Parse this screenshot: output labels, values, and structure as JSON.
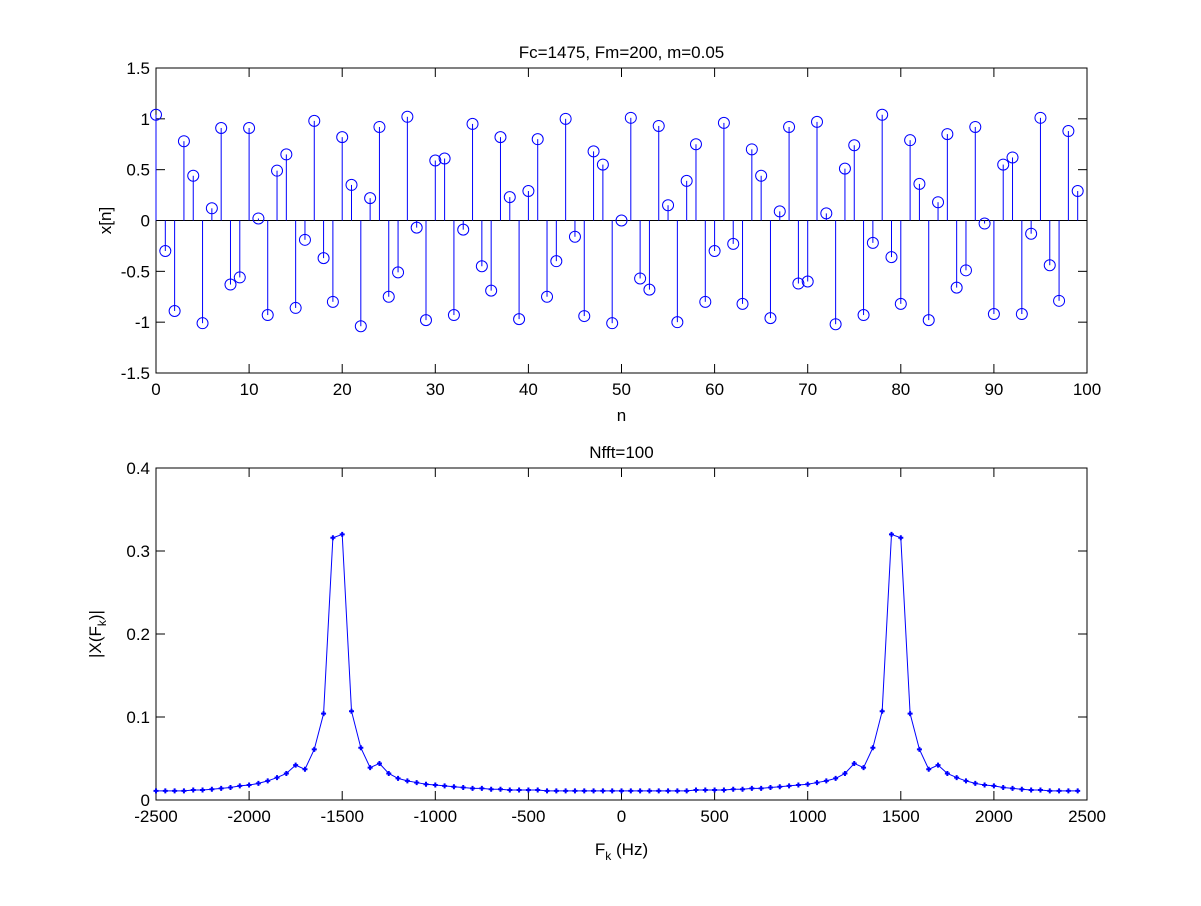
{
  "chart_data": [
    {
      "type": "stem",
      "title": "Fc=1475, Fm=200, m=0.05",
      "xlabel": "n",
      "ylabel": "x[n]",
      "xlim": [
        0,
        100
      ],
      "ylim": [
        -1.5,
        1.5
      ],
      "xticks": [
        "0",
        "10",
        "20",
        "30",
        "40",
        "50",
        "60",
        "70",
        "80",
        "90",
        "100"
      ],
      "yticks": [
        "-1.5",
        "-1",
        "-0.5",
        "0",
        "0.5",
        "1",
        "1.5"
      ],
      "color": "#0000ff",
      "x_start": 0,
      "values": [
        1.04,
        -0.3,
        -0.89,
        0.78,
        0.44,
        -1.01,
        0.12,
        0.91,
        -0.63,
        -0.56,
        0.91,
        0.02,
        -0.93,
        0.49,
        0.65,
        -0.86,
        -0.19,
        0.98,
        -0.37,
        -0.8,
        0.82,
        0.35,
        -1.04,
        0.22,
        0.92,
        -0.75,
        -0.51,
        1.02,
        -0.07,
        -0.98,
        0.59,
        0.61,
        -0.93,
        -0.09,
        0.95,
        -0.45,
        -0.69,
        0.82,
        0.23,
        -0.97,
        0.29,
        0.8,
        -0.75,
        -0.4,
        1.0,
        -0.16,
        -0.94,
        0.68,
        0.55,
        -1.01,
        0.0,
        1.01,
        -0.57,
        -0.68,
        0.93,
        0.15,
        -1.0,
        0.39,
        0.75,
        -0.8,
        -0.3,
        0.96,
        -0.23,
        -0.82,
        0.7,
        0.44,
        -0.96,
        0.09,
        0.92,
        -0.62,
        -0.6,
        0.97,
        0.07,
        -1.02,
        0.51,
        0.74,
        -0.93,
        -0.22,
        1.04,
        -0.36,
        -0.82,
        0.79,
        0.36,
        -0.98,
        0.18,
        0.85,
        -0.66,
        -0.49,
        0.92,
        -0.03,
        -0.92,
        0.55,
        0.62,
        -0.92,
        -0.13,
        1.01,
        -0.44,
        -0.79,
        0.88,
        0.29
      ]
    },
    {
      "type": "line",
      "title": "Nfft=100",
      "xlabel": "F",
      "xlabel_sub": "k",
      "xlabel_suffix": " (Hz)",
      "ylabel_pre": "|X(F",
      "ylabel_sub": "k",
      "ylabel_post": ")|",
      "xlim": [
        -2500,
        2500
      ],
      "ylim": [
        0,
        0.4
      ],
      "xticks": [
        "-2500",
        "-2000",
        "-1500",
        "-1000",
        "-500",
        "0",
        "500",
        "1000",
        "1500",
        "2000",
        "2500"
      ],
      "yticks": [
        "0",
        "0.1",
        "0.2",
        "0.3",
        "0.4"
      ],
      "color": "#0000ff",
      "x_start": -2500,
      "x_step": 50,
      "values": [
        0.011,
        0.011,
        0.011,
        0.011,
        0.012,
        0.012,
        0.013,
        0.014,
        0.015,
        0.017,
        0.018,
        0.02,
        0.023,
        0.027,
        0.032,
        0.042,
        0.037,
        0.061,
        0.104,
        0.316,
        0.32,
        0.107,
        0.063,
        0.039,
        0.044,
        0.032,
        0.026,
        0.023,
        0.021,
        0.019,
        0.018,
        0.017,
        0.016,
        0.015,
        0.014,
        0.014,
        0.013,
        0.013,
        0.012,
        0.012,
        0.012,
        0.012,
        0.011,
        0.011,
        0.011,
        0.011,
        0.011,
        0.011,
        0.011,
        0.011,
        0.011,
        0.011,
        0.011,
        0.011,
        0.011,
        0.011,
        0.011,
        0.011,
        0.012,
        0.012,
        0.012,
        0.012,
        0.013,
        0.013,
        0.014,
        0.014,
        0.015,
        0.016,
        0.017,
        0.018,
        0.019,
        0.021,
        0.023,
        0.026,
        0.032,
        0.044,
        0.039,
        0.063,
        0.107,
        0.32,
        0.316,
        0.104,
        0.061,
        0.037,
        0.042,
        0.032,
        0.027,
        0.023,
        0.02,
        0.018,
        0.017,
        0.015,
        0.014,
        0.013,
        0.012,
        0.012,
        0.011,
        0.011,
        0.011,
        0.011
      ]
    }
  ]
}
